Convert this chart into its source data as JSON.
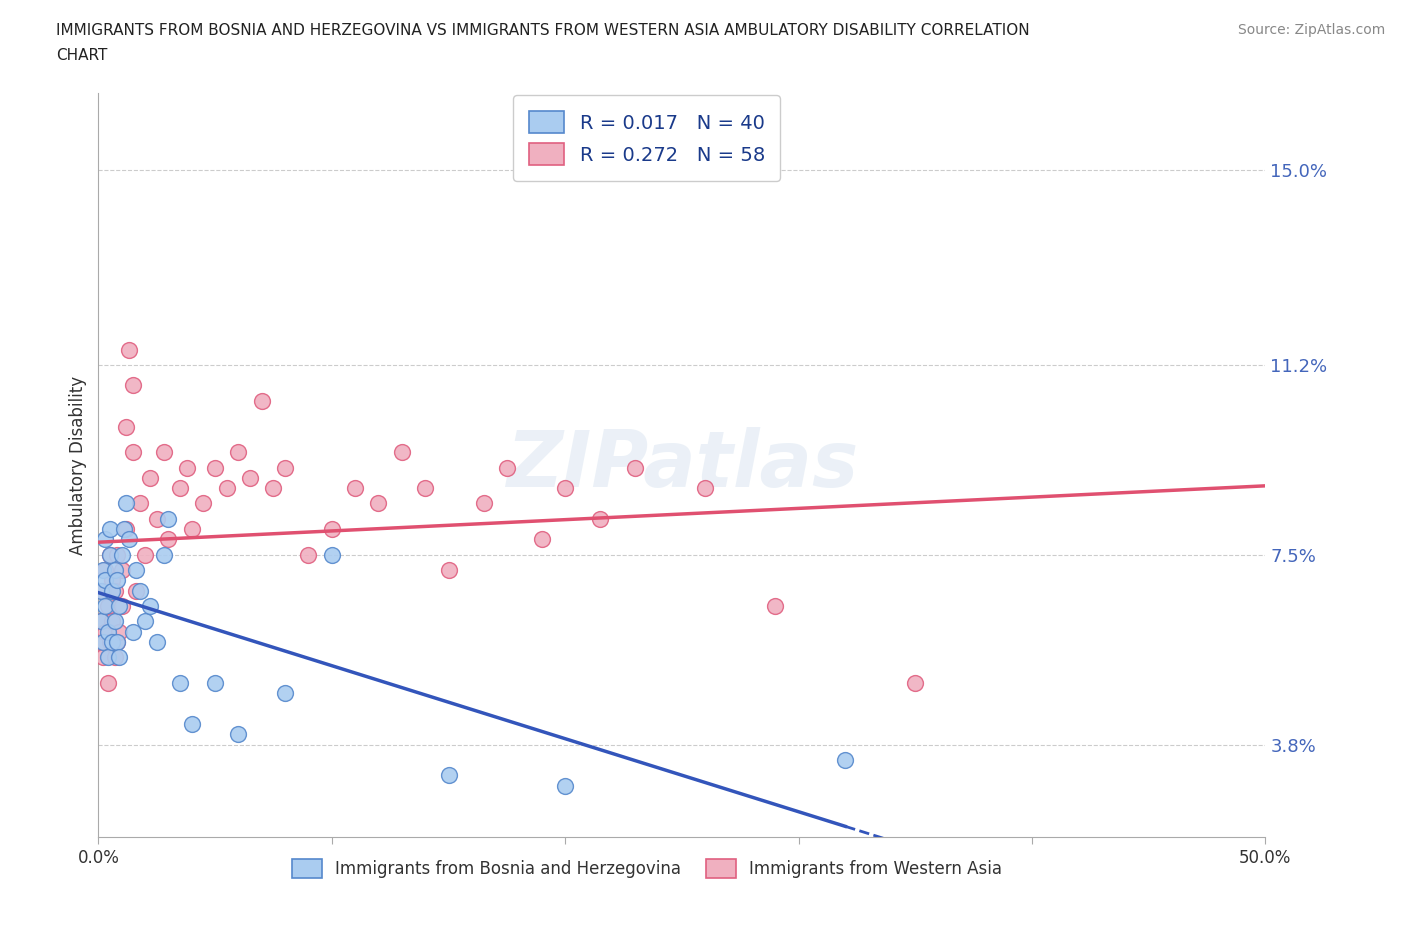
{
  "title_line1": "IMMIGRANTS FROM BOSNIA AND HERZEGOVINA VS IMMIGRANTS FROM WESTERN ASIA AMBULATORY DISABILITY CORRELATION",
  "title_line2": "CHART",
  "source_text": "Source: ZipAtlas.com",
  "ylabel": "Ambulatory Disability",
  "xlim": [
    0.0,
    0.5
  ],
  "ylim": [
    0.02,
    0.165
  ],
  "ytick_values": [
    0.038,
    0.075,
    0.112,
    0.15
  ],
  "ytick_labels": [
    "3.8%",
    "7.5%",
    "11.2%",
    "15.0%"
  ],
  "grid_color": "#cccccc",
  "background_color": "#ffffff",
  "bosnia_fill_color": "#aaccf0",
  "bosnia_edge_color": "#5588cc",
  "western_fill_color": "#f0b0c0",
  "western_edge_color": "#e06080",
  "bosnia_line_color": "#3355bb",
  "western_line_color": "#e05070",
  "bosnia_R": 0.017,
  "bosnia_N": 40,
  "western_R": 0.272,
  "western_N": 58,
  "bosnia_x": [
    0.001,
    0.001,
    0.002,
    0.002,
    0.003,
    0.003,
    0.003,
    0.004,
    0.004,
    0.005,
    0.005,
    0.006,
    0.006,
    0.007,
    0.007,
    0.008,
    0.008,
    0.009,
    0.009,
    0.01,
    0.011,
    0.012,
    0.013,
    0.015,
    0.016,
    0.018,
    0.02,
    0.022,
    0.025,
    0.028,
    0.03,
    0.035,
    0.04,
    0.05,
    0.06,
    0.08,
    0.1,
    0.15,
    0.2,
    0.32
  ],
  "bosnia_y": [
    0.062,
    0.068,
    0.072,
    0.058,
    0.065,
    0.07,
    0.078,
    0.055,
    0.06,
    0.075,
    0.08,
    0.058,
    0.068,
    0.072,
    0.062,
    0.058,
    0.07,
    0.065,
    0.055,
    0.075,
    0.08,
    0.085,
    0.078,
    0.06,
    0.072,
    0.068,
    0.062,
    0.065,
    0.058,
    0.075,
    0.082,
    0.05,
    0.042,
    0.05,
    0.04,
    0.048,
    0.075,
    0.032,
    0.03,
    0.035
  ],
  "western_x": [
    0.001,
    0.001,
    0.002,
    0.002,
    0.003,
    0.003,
    0.004,
    0.004,
    0.005,
    0.005,
    0.006,
    0.006,
    0.007,
    0.007,
    0.008,
    0.008,
    0.009,
    0.01,
    0.01,
    0.012,
    0.012,
    0.013,
    0.015,
    0.015,
    0.016,
    0.018,
    0.02,
    0.022,
    0.025,
    0.028,
    0.03,
    0.035,
    0.038,
    0.04,
    0.045,
    0.05,
    0.055,
    0.06,
    0.065,
    0.07,
    0.075,
    0.08,
    0.09,
    0.1,
    0.11,
    0.12,
    0.13,
    0.14,
    0.15,
    0.165,
    0.175,
    0.19,
    0.2,
    0.215,
    0.23,
    0.26,
    0.29,
    0.35
  ],
  "western_y": [
    0.062,
    0.058,
    0.068,
    0.055,
    0.072,
    0.06,
    0.065,
    0.05,
    0.075,
    0.058,
    0.07,
    0.062,
    0.068,
    0.055,
    0.058,
    0.075,
    0.06,
    0.072,
    0.065,
    0.08,
    0.1,
    0.115,
    0.095,
    0.108,
    0.068,
    0.085,
    0.075,
    0.09,
    0.082,
    0.095,
    0.078,
    0.088,
    0.092,
    0.08,
    0.085,
    0.092,
    0.088,
    0.095,
    0.09,
    0.105,
    0.088,
    0.092,
    0.075,
    0.08,
    0.088,
    0.085,
    0.095,
    0.088,
    0.072,
    0.085,
    0.092,
    0.078,
    0.088,
    0.082,
    0.092,
    0.088,
    0.065,
    0.05
  ]
}
